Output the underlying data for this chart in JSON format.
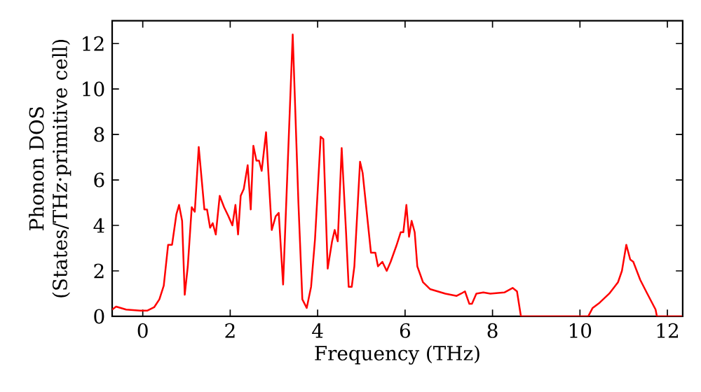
{
  "chart_data": {
    "type": "line",
    "xlabel": "Frequency (THz)",
    "ylabel": "Phonon DOS (States/THz·primitive cell)",
    "xlim": [
      -0.7,
      12.35
    ],
    "ylim": [
      0,
      13
    ],
    "xticks": [
      0,
      2,
      4,
      6,
      8,
      10,
      12
    ],
    "yticks": [
      0,
      2,
      4,
      6,
      8,
      10,
      12
    ],
    "marker": "none",
    "line_style": "solid",
    "series": [
      {
        "color": "#ff0000",
        "x": [
          -0.7,
          -0.61,
          -0.38,
          -0.06,
          0.1,
          0.26,
          0.38,
          0.48,
          0.58,
          0.67,
          0.77,
          0.83,
          0.9,
          0.96,
          1.03,
          1.12,
          1.19,
          1.28,
          1.41,
          1.47,
          1.54,
          1.6,
          1.67,
          1.76,
          1.86,
          1.96,
          2.05,
          2.12,
          2.18,
          2.24,
          2.31,
          2.4,
          2.47,
          2.53,
          2.6,
          2.66,
          2.72,
          2.82,
          2.95,
          3.04,
          3.11,
          3.21,
          3.43,
          3.56,
          3.65,
          3.75,
          3.85,
          3.94,
          4.07,
          4.13,
          4.23,
          4.33,
          4.39,
          4.46,
          4.55,
          4.65,
          4.71,
          4.78,
          4.84,
          4.97,
          5.03,
          5.22,
          5.32,
          5.38,
          5.48,
          5.58,
          5.67,
          5.8,
          5.9,
          5.96,
          6.03,
          6.09,
          6.15,
          6.22,
          6.28,
          6.41,
          6.57,
          6.92,
          7.18,
          7.28,
          7.37,
          7.47,
          7.53,
          7.63,
          7.79,
          7.95,
          8.27,
          8.46,
          8.56,
          8.65,
          10.19,
          10.29,
          10.45,
          10.67,
          10.87,
          10.96,
          11.06,
          11.15,
          11.22,
          11.38,
          11.54,
          11.73,
          11.76,
          12.34
        ],
        "values": [
          0.3,
          0.43,
          0.3,
          0.25,
          0.25,
          0.4,
          0.75,
          1.35,
          3.15,
          3.15,
          4.5,
          4.9,
          4.2,
          0.95,
          2.2,
          4.8,
          4.6,
          7.45,
          4.7,
          4.7,
          3.9,
          4.1,
          3.6,
          5.3,
          4.8,
          4.4,
          4.0,
          4.9,
          3.6,
          5.3,
          5.6,
          6.65,
          4.7,
          7.5,
          6.85,
          6.85,
          6.4,
          8.1,
          3.8,
          4.4,
          4.55,
          1.4,
          12.4,
          5.0,
          0.75,
          0.37,
          1.3,
          3.4,
          7.9,
          7.8,
          2.1,
          3.3,
          3.8,
          3.3,
          7.4,
          3.7,
          1.3,
          1.3,
          2.2,
          6.8,
          6.3,
          2.8,
          2.8,
          2.2,
          2.4,
          2.0,
          2.4,
          3.1,
          3.7,
          3.7,
          4.9,
          3.5,
          4.2,
          3.7,
          2.2,
          1.5,
          1.2,
          1.0,
          0.9,
          1.0,
          1.1,
          0.55,
          0.55,
          1.0,
          1.05,
          1.0,
          1.05,
          1.25,
          1.1,
          0,
          0,
          0.37,
          0.6,
          1.0,
          1.5,
          2.0,
          3.15,
          2.5,
          2.4,
          1.6,
          1.0,
          0.3,
          0,
          0
        ]
      }
    ]
  }
}
